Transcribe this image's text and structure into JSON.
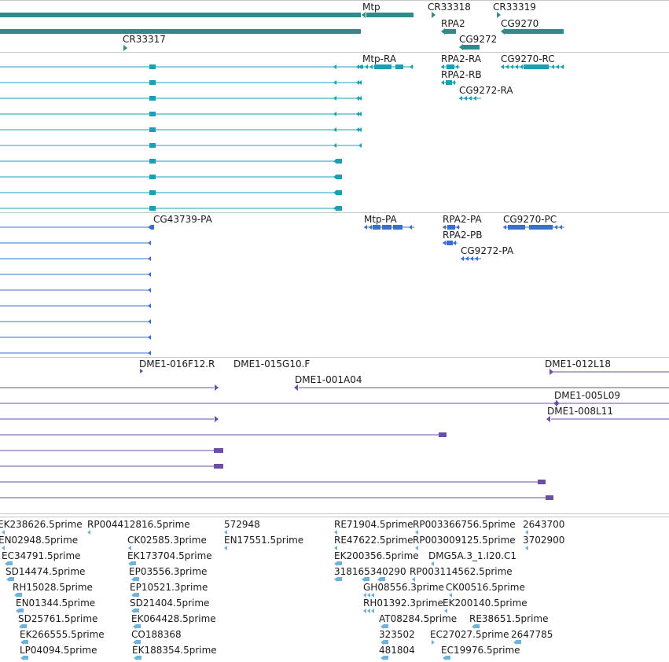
{
  "colors": {
    "gene": "#2e8b8b",
    "transcript": "#1aa0b4",
    "prediction": "#3a6fcf",
    "clone": "#6b4fa3",
    "est": "#6fb3dc",
    "separator": "#c8c8c8"
  },
  "tracks": {
    "genes": {
      "labels": [
        "Mtp",
        "CR33318",
        "CR33319",
        "RPA2",
        "CG9270",
        "CG9272",
        "CR33317"
      ]
    },
    "transcripts": {
      "labels": [
        "Mtp-RA",
        "RPA2-RA",
        "CG9270-RC",
        "RPA2-RB",
        "CG9272-RA"
      ]
    },
    "predictions": {
      "labels": [
        "CG43739-PA",
        "Mtp-PA",
        "RPA2-PA",
        "CG9270-PC",
        "RPA2-PB",
        "CG9272-PA"
      ]
    },
    "clones": {
      "labels": [
        "DME1-016F12.R",
        "DME1-015G10.F",
        "DME1-012L18",
        "DME1-001A04",
        "DME1-005L09",
        "DME1-008L11"
      ]
    },
    "ests": {
      "labels": [
        "EK238626.5prime",
        "RP004412816.5prime",
        "572948",
        "RE71904.5prime",
        "RP003366756.5prime",
        "2643700",
        "EN02948.5prime",
        "CK02585.3prime",
        "EN17551.5prime",
        "RE47622.5prime",
        "RP003009125.5prime",
        "3702900",
        "EC34791.5prime",
        "EK173704.5prime",
        "EK200356.5prime",
        "DMG5A.3_1.I20.C1",
        "SD14474.5prime",
        "EP03556.3prime",
        "318165340290",
        "RP003114562.5prime",
        "RH15028.5prime",
        "EP10521.3prime",
        "GH08556.3prime",
        "CK00516.5prime",
        "EN01344.5prime",
        "SD21404.5prime",
        "RH01392.3prime",
        "EK200140.5prime",
        "SD25761.5prime",
        "EK064428.5prime",
        "AT08284.5prime",
        "RE38651.5prime",
        "EK266555.5prime",
        "CO188368",
        "323502",
        "EC27027.5prime",
        "2647785",
        "LP04094.5prime",
        "EK188354.5prime",
        "481804",
        "EC19976.5prime"
      ]
    }
  }
}
